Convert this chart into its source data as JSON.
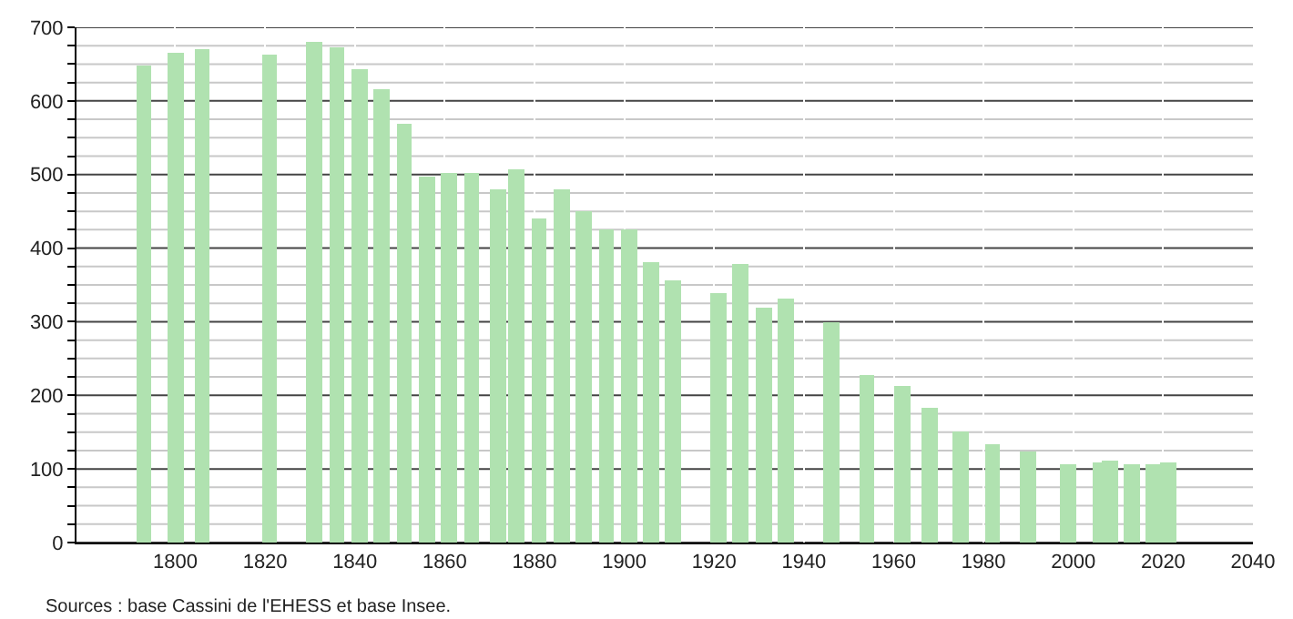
{
  "chart_data": {
    "type": "bar",
    "x": [
      1793,
      1800,
      1806,
      1821,
      1831,
      1836,
      1841,
      1846,
      1851,
      1856,
      1861,
      1866,
      1872,
      1876,
      1881,
      1886,
      1891,
      1896,
      1901,
      1906,
      1911,
      1921,
      1926,
      1931,
      1936,
      1946,
      1954,
      1962,
      1968,
      1975,
      1982,
      1990,
      1999,
      2006,
      2008,
      2013,
      2018,
      2021
    ],
    "values": [
      649,
      665,
      670,
      663,
      680,
      674,
      642,
      615,
      569,
      496,
      503,
      501,
      479,
      506,
      440,
      481,
      449,
      425,
      425,
      381,
      357,
      340,
      378,
      320,
      332,
      299,
      228,
      213,
      184,
      150,
      133,
      123,
      107,
      109,
      112,
      107,
      107,
      109
    ],
    "color": "#b0e2b0",
    "xlim": [
      1778,
      2040
    ],
    "xticks": [
      1800,
      1820,
      1840,
      1860,
      1880,
      1900,
      1920,
      1940,
      1960,
      1980,
      2000,
      2020,
      2040
    ],
    "ylim": [
      0,
      700
    ],
    "yticks": [
      0,
      {
        "value": 25,
        "label": null
      },
      {
        "value": 50,
        "label": null
      },
      {
        "value": 75,
        "label": null
      },
      100,
      {
        "value": 125,
        "label": null
      },
      {
        "value": 150,
        "label": null
      },
      {
        "value": 175,
        "label": null
      },
      200,
      {
        "value": 225,
        "label": null
      },
      {
        "value": 250,
        "label": null
      },
      {
        "value": 275,
        "label": null
      },
      300,
      {
        "value": 325,
        "label": null
      },
      {
        "value": 350,
        "label": null
      },
      {
        "value": 375,
        "label": null
      },
      400,
      {
        "value": 425,
        "label": null
      },
      {
        "value": 450,
        "label": null
      },
      {
        "value": 475,
        "label": null
      },
      500,
      {
        "value": 525,
        "label": null
      },
      {
        "value": 550,
        "label": null
      },
      {
        "value": 575,
        "label": null
      },
      600,
      {
        "value": 625,
        "label": null
      },
      {
        "value": 650,
        "label": null
      },
      {
        "value": 675,
        "label": null
      },
      700
    ],
    "grid": true,
    "annotations": [
      "Sources : base Cassini de l'EHESS et base Insee."
    ]
  }
}
